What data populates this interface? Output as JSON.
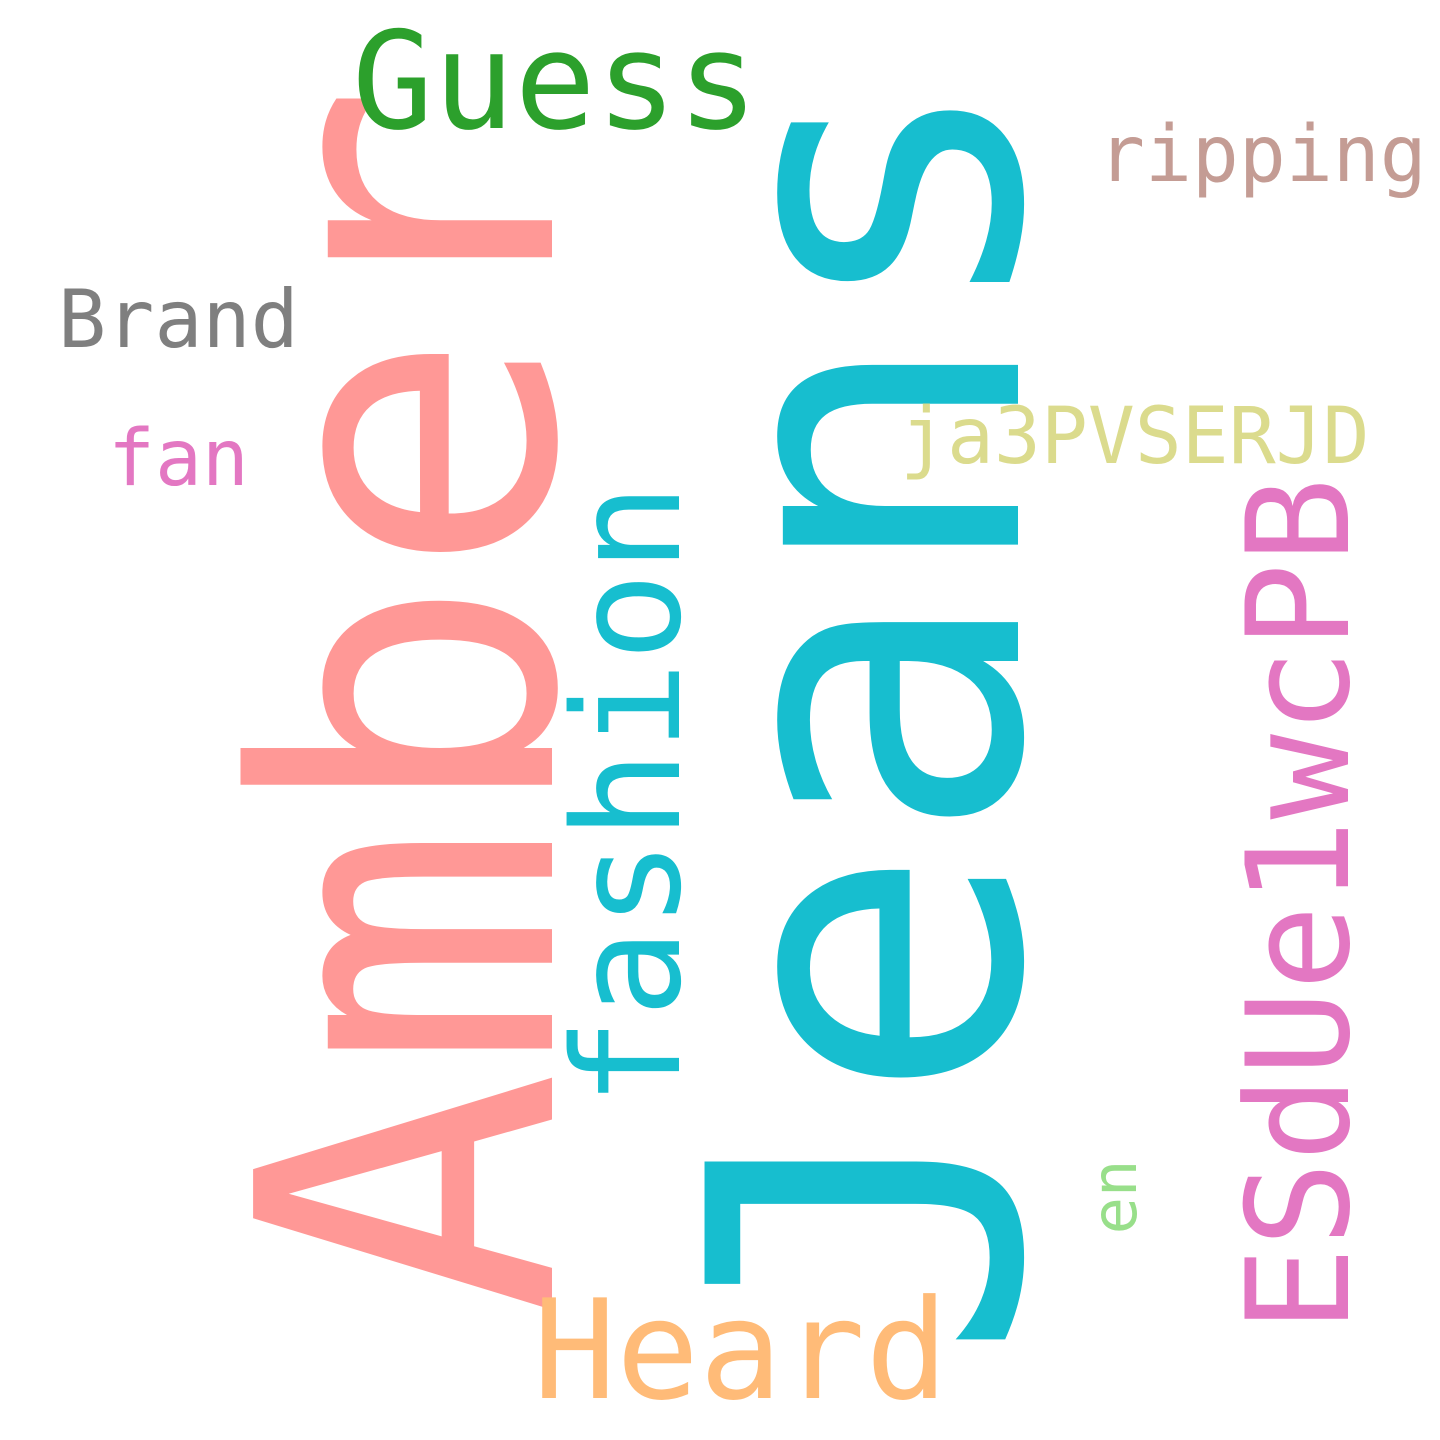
{
  "words": {
    "jeans": {
      "text": "Jeans",
      "color": "#17becf"
    },
    "amber": {
      "text": "Amber",
      "color": "#ff9896"
    },
    "guess": {
      "text": "Guess",
      "color": "#2ca02c"
    },
    "ripping": {
      "text": "ripping",
      "color": "#c49c94"
    },
    "brand": {
      "text": "Brand",
      "color": "#7f7f7f"
    },
    "fan": {
      "text": "fan",
      "color": "#e377c2"
    },
    "ja3pvserjd": {
      "text": "ja3PVSERJD",
      "color": "#dbdb8d"
    },
    "fashion": {
      "text": "fashion",
      "color": "#17becf"
    },
    "esdue1wcpb": {
      "text": "ESdUe1wcPB",
      "color": "#e377c2"
    },
    "en": {
      "text": "en",
      "color": "#98df8a"
    },
    "heard": {
      "text": "Heard",
      "color": "#ffbb78"
    }
  }
}
